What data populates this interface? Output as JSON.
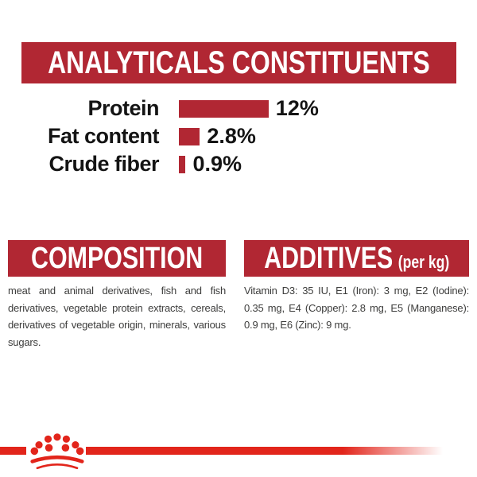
{
  "colors": {
    "banner_red": "#B12733",
    "logo_red": "#E2251B",
    "chart_text": "#141414",
    "body_text": "#3D3D3C",
    "background": "#FFFFFF"
  },
  "header": {
    "title": "ANALYTICALS CONSTITUENTS"
  },
  "chart_data": {
    "type": "bar",
    "orientation": "horizontal",
    "title": "ANALYTICALS CONSTITUENTS",
    "categories": [
      "Protein",
      "Fat content",
      "Crude fiber"
    ],
    "values": [
      12,
      2.8,
      0.9
    ],
    "value_labels": [
      "12%",
      "2.8%",
      "0.9%"
    ],
    "unit": "%",
    "xlim": [
      0,
      12
    ],
    "bar_color": "#B12733",
    "grid": false,
    "legend": false
  },
  "composition": {
    "title": "COMPOSITION",
    "body": "meat and animal derivatives, fish and fish derivatives, vegetable protein extracts, cereals, derivatives of vegetable origin, minerals, various sugars."
  },
  "additives": {
    "title": "ADDITIVES",
    "title_suffix": "(per kg)",
    "body": "Vitamin D3: 35 IU, E1 (Iron): 3 mg, E2 (Iodine): 0.35 mg, E4 (Copper): 2.8 mg, E5 (Manganese): 0.9 mg, E6 (Zinc): 9 mg."
  },
  "footer": {
    "brand_icon": "royal-canin-crown-logo"
  }
}
